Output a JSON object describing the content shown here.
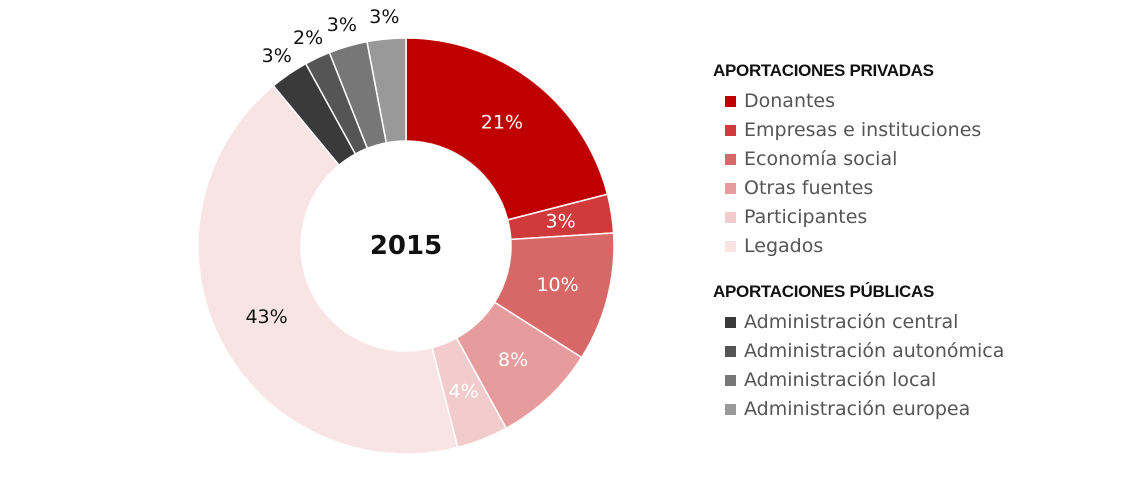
{
  "chart_data": {
    "type": "pie",
    "subtype": "donut",
    "center_label": "2015",
    "legend_position": "right",
    "groups": [
      {
        "name": "APORTACIONES PRIVADAS",
        "series_indices": [
          0,
          1,
          2,
          3,
          4,
          5
        ]
      },
      {
        "name": "APORTACIONES PÚBLICAS",
        "series_indices": [
          6,
          7,
          8,
          9
        ]
      }
    ],
    "slices": [
      {
        "name": "Donantes",
        "value": 21,
        "label": "21%",
        "color": "#c00000",
        "label_color": "#ffffff"
      },
      {
        "name": "Empresas e instituciones",
        "value": 3,
        "label": "3%",
        "color": "#d13a3a",
        "label_color": "#ffffff"
      },
      {
        "name": "Economía social",
        "value": 10,
        "label": "10%",
        "color": "#d86767",
        "label_color": "#ffffff"
      },
      {
        "name": "Otras fuentes",
        "value": 8,
        "label": "8%",
        "color": "#e69c9c",
        "label_color": "#ffffff"
      },
      {
        "name": "Participantes",
        "value": 4,
        "label": "4%",
        "color": "#f2cccc",
        "label_color": "#ffffff"
      },
      {
        "name": "Legados",
        "value": 43,
        "label": "43%",
        "color": "#f8e4e4",
        "label_color": "#111111"
      },
      {
        "name": "Administración central",
        "value": 3,
        "label": "3%",
        "color": "#3a3a3a",
        "label_color": "#111111"
      },
      {
        "name": "Administración autonómica",
        "value": 2,
        "label": "2%",
        "color": "#555555",
        "label_color": "#111111"
      },
      {
        "name": "Administración local",
        "value": 3,
        "label": "3%",
        "color": "#777777",
        "label_color": "#111111"
      },
      {
        "name": "Administración europea",
        "value": 3,
        "label": "3%",
        "color": "#999999",
        "label_color": "#111111"
      }
    ]
  }
}
